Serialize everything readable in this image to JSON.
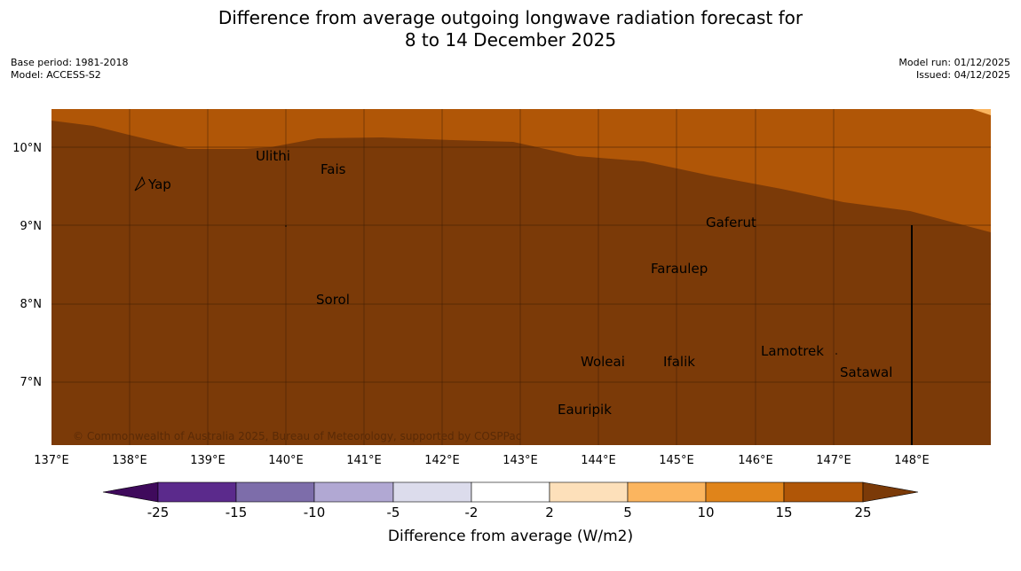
{
  "title": {
    "line1": "Difference from average outgoing longwave radiation forecast for",
    "line2": "8 to 14 December 2025"
  },
  "meta": {
    "base_period": "Base period: 1981-2018",
    "model": "Model: ACCESS-S2",
    "model_run": "Model run: 01/12/2025",
    "issued": "Issued: 04/12/2025"
  },
  "map": {
    "lon_labels": [
      "137°E",
      "138°E",
      "139°E",
      "140°E",
      "141°E",
      "142°E",
      "143°E",
      "144°E",
      "145°E",
      "146°E",
      "147°E",
      "148°E"
    ],
    "lat_labels": [
      "10°N",
      "9°N",
      "8°N",
      "7°N"
    ],
    "places": [
      "Yap",
      "Ulithi",
      "Fais",
      "Gaferut",
      "Faraulep",
      "Sorol",
      "Woleai",
      "Ifalik",
      "Lamotrek",
      "Satawal",
      "Eauripik"
    ],
    "copyright": "© Commonwealth of Australia 2025, Bureau of Meteorology, supported by COSPPac",
    "colors": {
      "upper_band": "#b05607",
      "lower_band": "#7b3a08"
    }
  },
  "colorbar": {
    "ticks": [
      "-25",
      "-15",
      "-10",
      "-5",
      "-2",
      "2",
      "5",
      "10",
      "15",
      "25"
    ],
    "colors": [
      "#3f0a5c",
      "#5b2a8c",
      "#7d6daa",
      "#b1a8d3",
      "#dcdcec",
      "#ffffff",
      "#fde0ba",
      "#fbb55f",
      "#e0841a",
      "#b05607",
      "#7b3a08"
    ],
    "label": "Difference from average (W/m2)"
  }
}
